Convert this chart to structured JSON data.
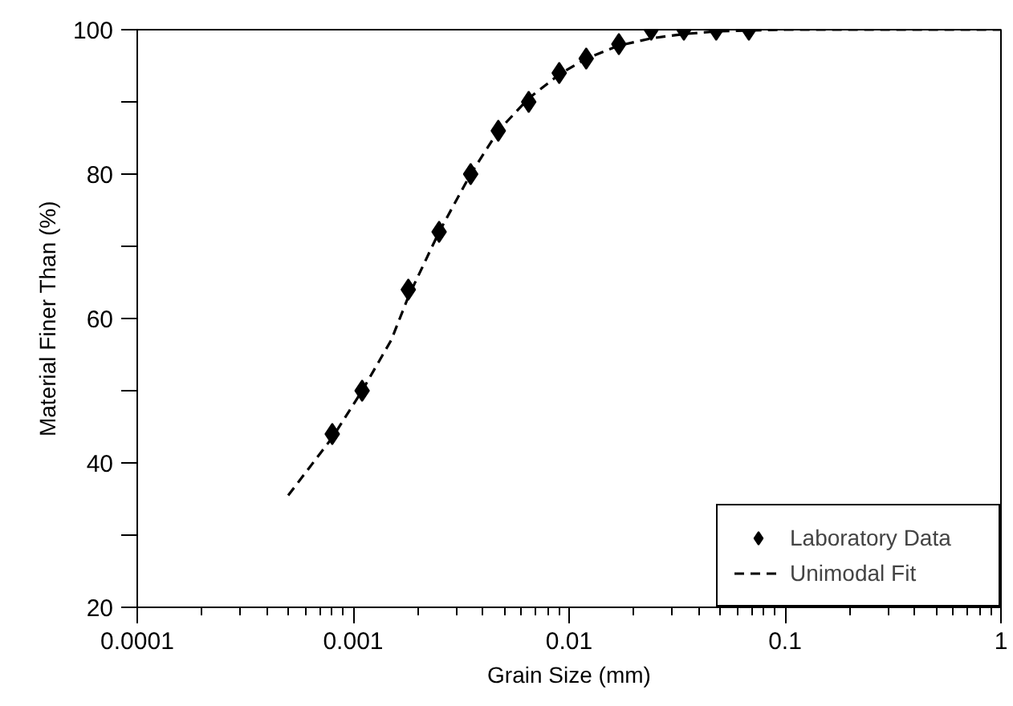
{
  "chart_data": {
    "type": "scatter",
    "xlabel": "Grain Size (mm)",
    "ylabel": "Material Finer Than (%)",
    "log": "x",
    "xlim": [
      0.0001,
      1
    ],
    "ylim": [
      20,
      100
    ],
    "xticks": [
      0.0001,
      0.001,
      0.01,
      0.1,
      1
    ],
    "yticks": [
      20,
      {
        "value": 30,
        "label": null
      },
      40,
      {
        "value": 50,
        "label": null
      },
      60,
      {
        "value": 70,
        "label": null
      },
      80,
      {
        "value": 90,
        "label": null
      },
      100
    ],
    "grid": false,
    "legend": "bottom right",
    "series": [
      {
        "name": "Laboratory Data",
        "marker": "diamond",
        "color": "#000000",
        "x": [
          0.0008,
          0.0011,
          0.0018,
          0.0025,
          0.0035,
          0.0047,
          0.0065,
          0.009,
          0.012,
          0.017,
          0.024,
          0.034,
          0.048,
          0.068
        ],
        "values": [
          44,
          50,
          64,
          72,
          80,
          86,
          90,
          94,
          96,
          98,
          100,
          100,
          100,
          100
        ]
      },
      {
        "name": "Unimodal Fit",
        "type": "line",
        "line_style": "dashed",
        "color": "#000000",
        "x": [
          0.0005,
          0.0008,
          0.0011,
          0.0015,
          0.0018,
          0.0025,
          0.0035,
          0.0047,
          0.0065,
          0.009,
          0.012,
          0.017,
          0.024,
          0.034,
          0.05,
          0.1,
          1
        ],
        "values": [
          35.5,
          43.5,
          50,
          57,
          63,
          72,
          80,
          86,
          90.5,
          93.8,
          96,
          97.8,
          98.8,
          99.4,
          99.8,
          100,
          100
        ]
      }
    ]
  }
}
